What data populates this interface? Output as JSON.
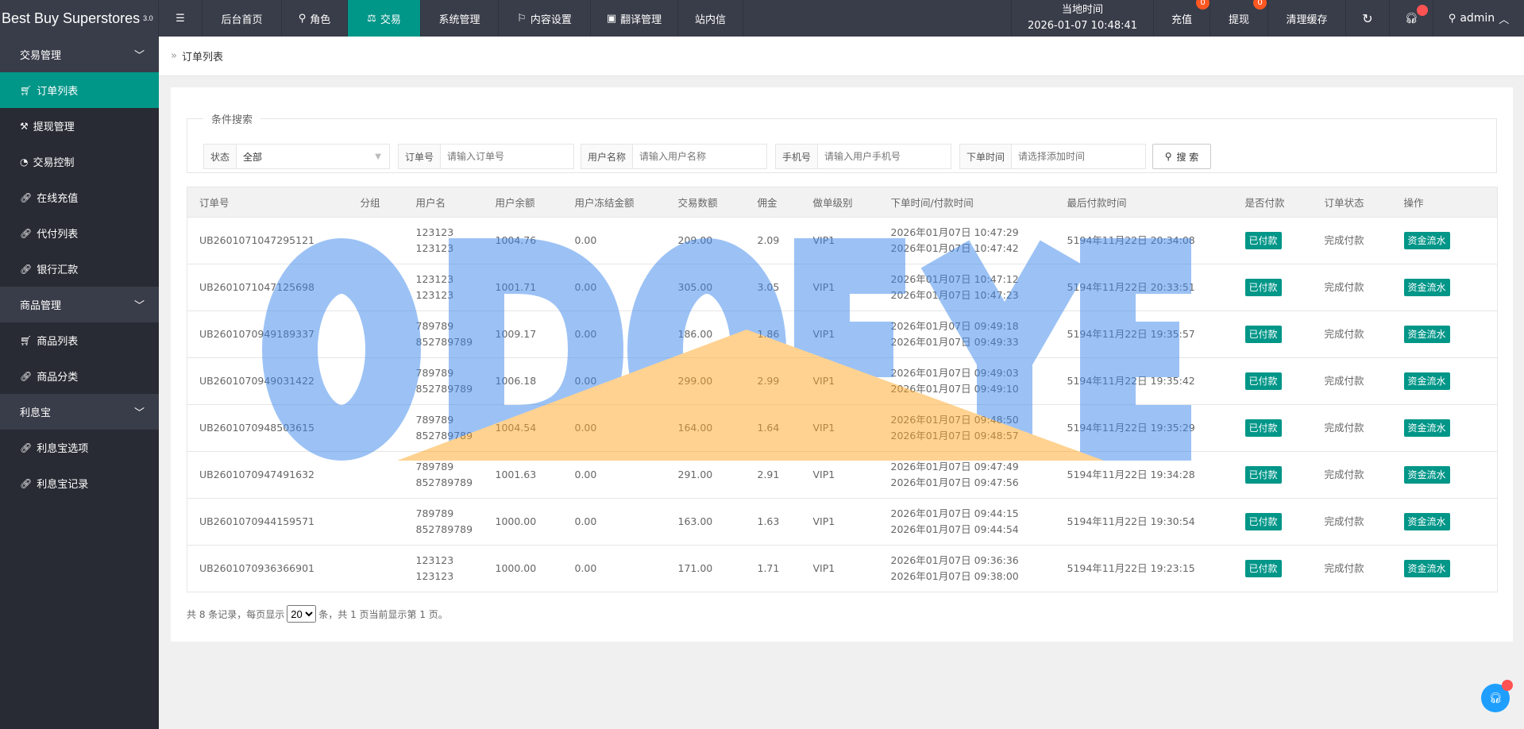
{
  "brand": {
    "name": "Best Buy Superstores",
    "version": "3.0"
  },
  "topnav": [
    {
      "label": "后台首页",
      "icon": ""
    },
    {
      "label": "角色",
      "icon": "user-icon"
    },
    {
      "label": "交易",
      "icon": "scale-icon",
      "active": true
    },
    {
      "label": "系统管理",
      "icon": ""
    },
    {
      "label": "内容设置",
      "icon": "flag-icon"
    },
    {
      "label": "翻译管理",
      "icon": "translate-icon"
    },
    {
      "label": "站内信",
      "icon": ""
    }
  ],
  "clock": {
    "label": "当地时间",
    "value": "2026-01-07 10:48:41"
  },
  "topright": {
    "recharge": "充值",
    "recharge_badge": "0",
    "withdraw": "提现",
    "withdraw_badge": "0",
    "clear_cache": "清理缓存",
    "user": "admin"
  },
  "sidebar": [
    {
      "group": "交易管理",
      "items": [
        {
          "label": "订单列表",
          "icon": "cart-icon",
          "active": true
        },
        {
          "label": "提现管理",
          "icon": "gavel-icon"
        },
        {
          "label": "交易控制",
          "icon": "dashboard-icon"
        },
        {
          "label": "在线充值",
          "icon": "link-icon"
        },
        {
          "label": "代付列表",
          "icon": "link-icon"
        },
        {
          "label": "银行汇款",
          "icon": "link-icon"
        }
      ]
    },
    {
      "group": "商品管理",
      "items": [
        {
          "label": "商品列表",
          "icon": "cart-icon"
        },
        {
          "label": "商品分类",
          "icon": "link-icon"
        }
      ]
    },
    {
      "group": "利息宝",
      "items": [
        {
          "label": "利息宝选项",
          "icon": "link-icon"
        },
        {
          "label": "利息宝记录",
          "icon": "link-icon"
        }
      ]
    }
  ],
  "breadcrumb": "订单列表",
  "search": {
    "legend": "条件搜索",
    "status_label": "状态",
    "status_value": "全部",
    "order_label": "订单号",
    "order_ph": "请输入订单号",
    "user_label": "用户名称",
    "user_ph": "请输入用户名称",
    "phone_label": "手机号",
    "phone_ph": "请输入用户手机号",
    "time_label": "下单时间",
    "time_ph": "请选择添加时间",
    "button": "搜 索"
  },
  "table": {
    "headers": [
      "订单号",
      "分组",
      "用户名",
      "用户余额",
      "用户冻结金额",
      "交易数额",
      "佣金",
      "做单级别",
      "下单时间/付款时间",
      "最后付款时间",
      "是否付款",
      "订单状态",
      "操作"
    ],
    "rows": [
      {
        "id": "UB2601071047295121",
        "group": "",
        "user": [
          "123123",
          "123123"
        ],
        "balance": "1004.76",
        "frozen": "0.00",
        "amount": "209.00",
        "commission": "2.09",
        "level": "VIP1",
        "times": [
          "2026年01月07日 10:47:29",
          "2026年01月07日 10:47:42"
        ],
        "last": "5194年11月22日 20:34:08",
        "paid": "已付款",
        "status": "完成付款",
        "action": "资金流水"
      },
      {
        "id": "UB2601071047125698",
        "group": "",
        "user": [
          "123123",
          "123123"
        ],
        "balance": "1001.71",
        "frozen": "0.00",
        "amount": "305.00",
        "commission": "3.05",
        "level": "VIP1",
        "times": [
          "2026年01月07日 10:47:12",
          "2026年01月07日 10:47:23"
        ],
        "last": "5194年11月22日 20:33:51",
        "paid": "已付款",
        "status": "完成付款",
        "action": "资金流水"
      },
      {
        "id": "UB2601070949189337",
        "group": "",
        "user": [
          "789789",
          "852789789"
        ],
        "balance": "1009.17",
        "frozen": "0.00",
        "amount": "186.00",
        "commission": "1.86",
        "level": "VIP1",
        "times": [
          "2026年01月07日 09:49:18",
          "2026年01月07日 09:49:33"
        ],
        "last": "5194年11月22日 19:35:57",
        "paid": "已付款",
        "status": "完成付款",
        "action": "资金流水"
      },
      {
        "id": "UB2601070949031422",
        "group": "",
        "user": [
          "789789",
          "852789789"
        ],
        "balance": "1006.18",
        "frozen": "0.00",
        "amount": "299.00",
        "commission": "2.99",
        "level": "VIP1",
        "times": [
          "2026年01月07日 09:49:03",
          "2026年01月07日 09:49:10"
        ],
        "last": "5194年11月22日 19:35:42",
        "paid": "已付款",
        "status": "完成付款",
        "action": "资金流水"
      },
      {
        "id": "UB2601070948503615",
        "group": "",
        "user": [
          "789789",
          "852789789"
        ],
        "balance": "1004.54",
        "frozen": "0.00",
        "amount": "164.00",
        "commission": "1.64",
        "level": "VIP1",
        "times": [
          "2026年01月07日 09:48:50",
          "2026年01月07日 09:48:57"
        ],
        "last": "5194年11月22日 19:35:29",
        "paid": "已付款",
        "status": "完成付款",
        "action": "资金流水"
      },
      {
        "id": "UB2601070947491632",
        "group": "",
        "user": [
          "789789",
          "852789789"
        ],
        "balance": "1001.63",
        "frozen": "0.00",
        "amount": "291.00",
        "commission": "2.91",
        "level": "VIP1",
        "times": [
          "2026年01月07日 09:47:49",
          "2026年01月07日 09:47:56"
        ],
        "last": "5194年11月22日 19:34:28",
        "paid": "已付款",
        "status": "完成付款",
        "action": "资金流水"
      },
      {
        "id": "UB2601070944159571",
        "group": "",
        "user": [
          "789789",
          "852789789"
        ],
        "balance": "1000.00",
        "frozen": "0.00",
        "amount": "163.00",
        "commission": "1.63",
        "level": "VIP1",
        "times": [
          "2026年01月07日 09:44:15",
          "2026年01月07日 09:44:54"
        ],
        "last": "5194年11月22日 19:30:54",
        "paid": "已付款",
        "status": "完成付款",
        "action": "资金流水"
      },
      {
        "id": "UB2601070936366901",
        "group": "",
        "user": [
          "123123",
          "123123"
        ],
        "balance": "1000.00",
        "frozen": "0.00",
        "amount": "171.00",
        "commission": "1.71",
        "level": "VIP1",
        "times": [
          "2026年01月07日 09:36:36",
          "2026年01月07日 09:38:00"
        ],
        "last": "5194年11月22日 19:23:15",
        "paid": "已付款",
        "status": "完成付款",
        "action": "资金流水"
      }
    ]
  },
  "pagination": {
    "prefix": "共 8 条记录，每页显示",
    "page_size": "20",
    "suffix": "条，共 1 页当前显示第 1 页。"
  },
  "watermark": "ODOEYE",
  "colors": {
    "accent": "#009688",
    "topbar": "#393d49",
    "sidebar": "#282b33",
    "badge": "#ff5722"
  }
}
